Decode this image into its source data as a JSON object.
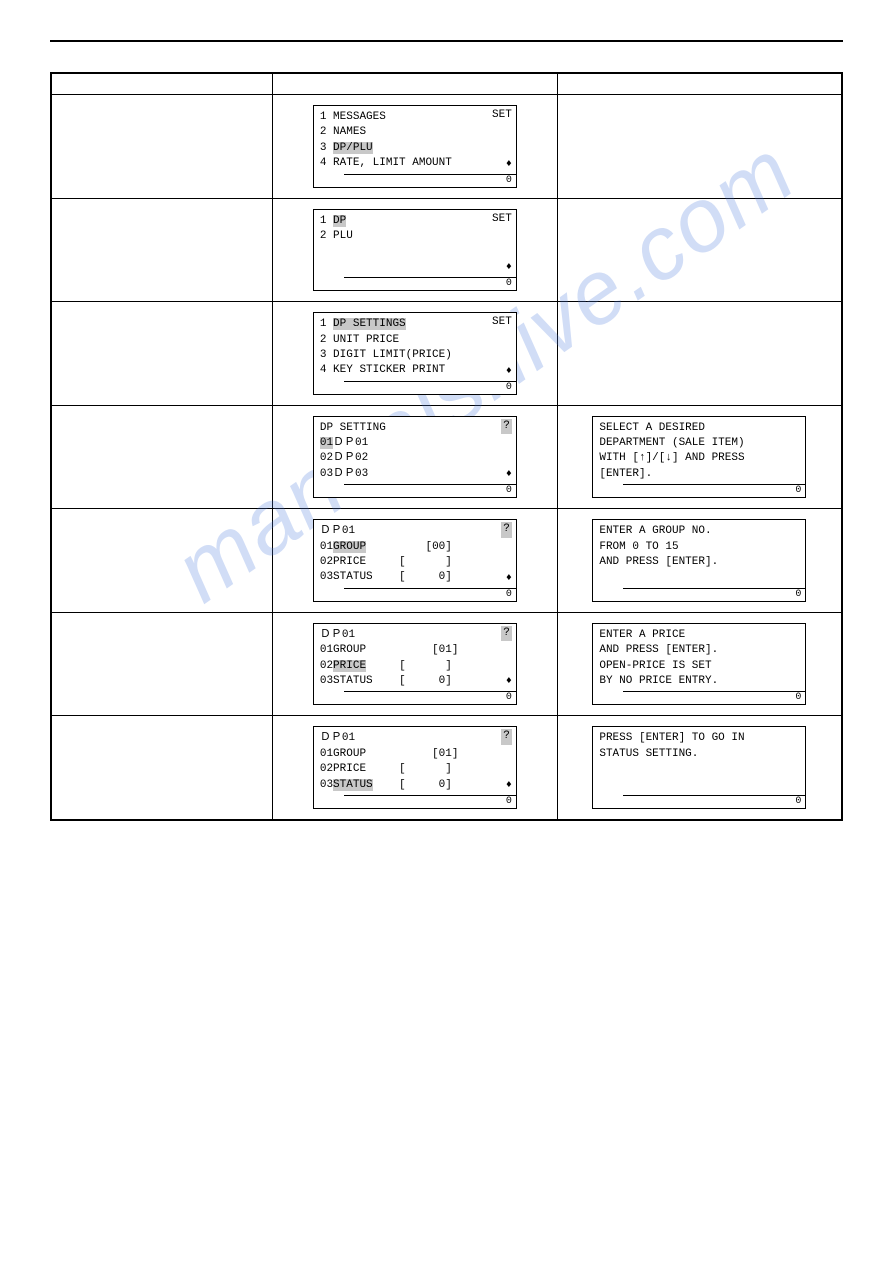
{
  "watermark": "manualshive.com",
  "screens": {
    "s1": {
      "set": "SET",
      "l1": "1 MESSAGES",
      "l2": "2 NAMES",
      "l3": "3 ",
      "l3hl": "DP/PLU",
      "l4": "4 RATE, LIMIT AMOUNT",
      "status": "0"
    },
    "s2": {
      "set": "SET",
      "l1": "1 ",
      "l1hl": "DP",
      "l2": "2 PLU",
      "status": "0"
    },
    "s3": {
      "set": "SET",
      "l1": "1 ",
      "l1hl": "DP SETTINGS",
      "l2": "2 UNIT PRICE",
      "l3": "3 DIGIT LIMIT(PRICE)",
      "l4": "4 KEY STICKER PRINT",
      "status": "0"
    },
    "s4": {
      "q": "?",
      "title": "DP SETTING",
      "l1a": "01",
      "l1b": "ＤＰ",
      "l1c": "01",
      "l2": "02ＤＰ02",
      "l3": "03ＤＰ03",
      "status": "0"
    },
    "s5": {
      "q": "?",
      "title": "ＤＰ01",
      "l1a": "01",
      "l1b": "GROUP",
      "l1c": "         [00]",
      "l2": "02PRICE     [      ]",
      "l3": "03STATUS    [     0]",
      "status": "0"
    },
    "s6": {
      "q": "?",
      "title": "ＤＰ01",
      "l1": "01GROUP          [01]",
      "l2a": "02",
      "l2b": "PRICE",
      "l2c": "     [      ]",
      "l3": "03STATUS    [     0]",
      "status": "0"
    },
    "s7": {
      "q": "?",
      "title": "ＤＰ01",
      "l1": "01GROUP          [01]",
      "l2": "02PRICE     [      ]",
      "l3a": "03",
      "l3b": "STATUS",
      "l3c": "    [     0]",
      "status": "0"
    }
  },
  "guides": {
    "g4": {
      "l1": "SELECT A DESIRED",
      "l2": "DEPARTMENT (SALE ITEM)",
      "l3": "WITH [↑]/[↓] AND PRESS",
      "l4": "[ENTER].",
      "status": "0"
    },
    "g5": {
      "l1": "ENTER A GROUP NO.",
      "l2": "FROM 0 TO 15",
      "l3": "AND PRESS [ENTER].",
      "status": "0"
    },
    "g6": {
      "l1": "ENTER A PRICE",
      "l2": "AND PRESS [ENTER].",
      "l3": "OPEN-PRICE IS SET",
      "l4": "BY NO PRICE ENTRY.",
      "status": "0"
    },
    "g7": {
      "l1": "PRESS [ENTER] TO GO IN",
      "l2": "STATUS SETTING.",
      "status": "0"
    }
  }
}
